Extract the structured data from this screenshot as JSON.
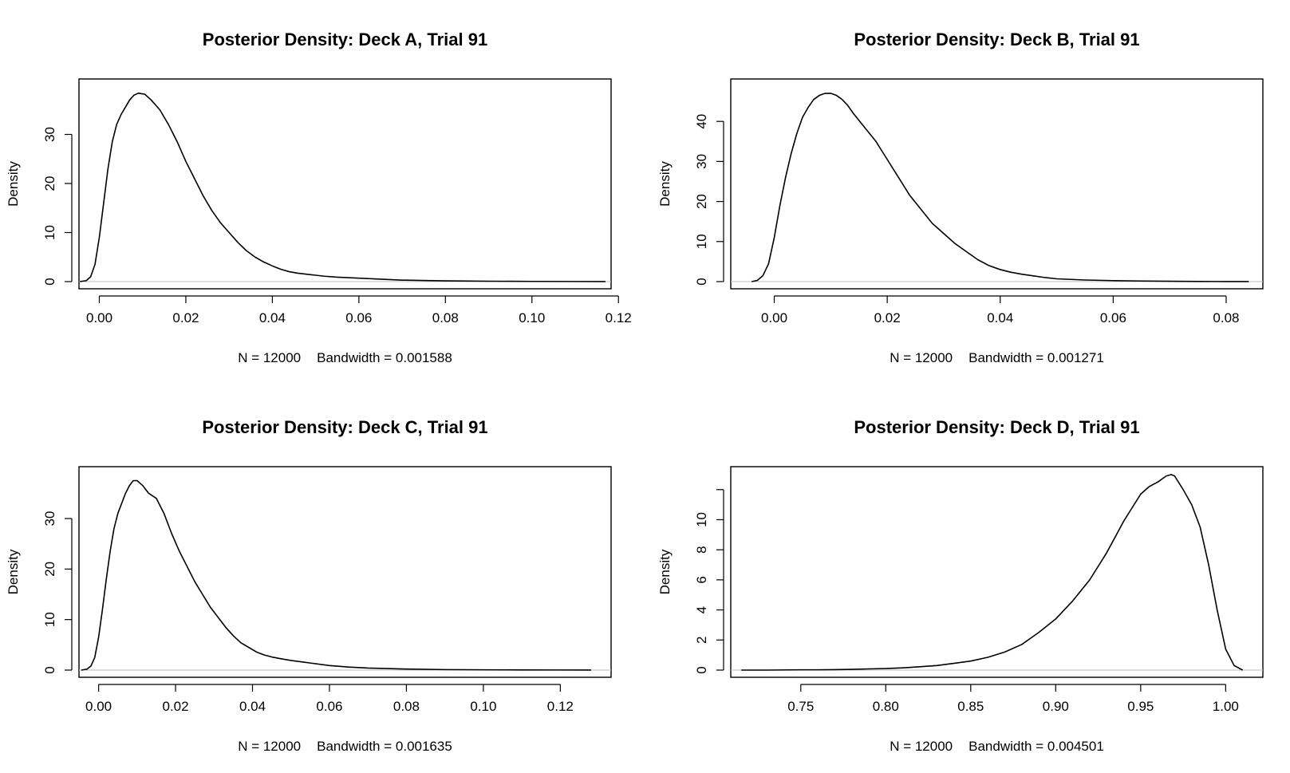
{
  "chart_data": [
    {
      "type": "line",
      "title": "Posterior Density: Deck A, Trial 91",
      "ylabel": "Density",
      "xlabel_parts": {
        "n": "N = 12000",
        "bandwidth": "Bandwidth = 0.001588"
      },
      "xlim": [
        -0.0047,
        0.1183
      ],
      "ylim": [
        0,
        40
      ],
      "xticks": [
        {
          "v": 0.0,
          "label": "0.00"
        },
        {
          "v": 0.02,
          "label": "0.02"
        },
        {
          "v": 0.04,
          "label": "0.04"
        },
        {
          "v": 0.06,
          "label": "0.06"
        },
        {
          "v": 0.08,
          "label": "0.08"
        },
        {
          "v": 0.1,
          "label": "0.10"
        },
        {
          "v": 0.12,
          "label": "0.12"
        }
      ],
      "yticks": [
        {
          "v": 0,
          "label": "0"
        },
        {
          "v": 10,
          "label": "10"
        },
        {
          "v": 20,
          "label": "20"
        },
        {
          "v": 30,
          "label": "30"
        }
      ],
      "series": [
        {
          "x": [
            -0.0045,
            -0.003,
            -0.002,
            -0.001,
            0.0,
            0.001,
            0.002,
            0.003,
            0.004,
            0.005,
            0.006,
            0.007,
            0.008,
            0.009,
            0.0105,
            0.012,
            0.014,
            0.016,
            0.018,
            0.02,
            0.022,
            0.024,
            0.026,
            0.028,
            0.03,
            0.032,
            0.034,
            0.036,
            0.038,
            0.04,
            0.042,
            0.044,
            0.046,
            0.048,
            0.05,
            0.052,
            0.055,
            0.06,
            0.065,
            0.07,
            0.08,
            0.09,
            0.1,
            0.11,
            0.117
          ],
          "y": [
            0.0,
            0.2,
            1.0,
            3.5,
            9.0,
            16.0,
            23.0,
            28.5,
            32.0,
            34.0,
            35.5,
            37.0,
            38.0,
            38.4,
            38.2,
            37.0,
            35.0,
            32.0,
            28.5,
            24.5,
            21.0,
            17.5,
            14.5,
            12.0,
            10.0,
            8.0,
            6.3,
            5.0,
            4.0,
            3.2,
            2.5,
            2.0,
            1.7,
            1.5,
            1.3,
            1.1,
            0.9,
            0.7,
            0.5,
            0.3,
            0.15,
            0.08,
            0.04,
            0.02,
            0.01
          ]
        }
      ]
    },
    {
      "type": "line",
      "title": "Posterior Density: Deck B, Trial 91",
      "ylabel": "Density",
      "xlabel_parts": {
        "n": "N = 12000",
        "bandwidth": "Bandwidth = 0.001271"
      },
      "xlim": [
        -0.0077,
        0.0865
      ],
      "ylim": [
        0,
        49
      ],
      "xticks": [
        {
          "v": 0.0,
          "label": "0.00"
        },
        {
          "v": 0.02,
          "label": "0.02"
        },
        {
          "v": 0.04,
          "label": "0.04"
        },
        {
          "v": 0.06,
          "label": "0.06"
        },
        {
          "v": 0.08,
          "label": "0.08"
        }
      ],
      "yticks": [
        {
          "v": 0,
          "label": "0"
        },
        {
          "v": 10,
          "label": "10"
        },
        {
          "v": 20,
          "label": "20"
        },
        {
          "v": 30,
          "label": "30"
        },
        {
          "v": 40,
          "label": "40"
        }
      ],
      "series": [
        {
          "x": [
            -0.004,
            -0.003,
            -0.002,
            -0.001,
            0.0,
            0.001,
            0.002,
            0.003,
            0.004,
            0.005,
            0.006,
            0.007,
            0.008,
            0.009,
            0.01,
            0.011,
            0.012,
            0.013,
            0.014,
            0.016,
            0.018,
            0.02,
            0.022,
            0.024,
            0.026,
            0.028,
            0.03,
            0.032,
            0.034,
            0.036,
            0.038,
            0.04,
            0.042,
            0.044,
            0.046,
            0.048,
            0.05,
            0.055,
            0.06,
            0.065,
            0.07,
            0.075,
            0.08,
            0.084
          ],
          "y": [
            0.0,
            0.3,
            1.5,
            4.5,
            11.0,
            19.0,
            26.0,
            32.0,
            37.0,
            41.0,
            43.5,
            45.5,
            46.5,
            47.0,
            47.0,
            46.5,
            45.5,
            44.0,
            42.0,
            38.5,
            35.0,
            30.5,
            26.0,
            21.5,
            18.0,
            14.5,
            12.0,
            9.5,
            7.5,
            5.5,
            4.0,
            3.0,
            2.3,
            1.8,
            1.4,
            1.0,
            0.7,
            0.4,
            0.25,
            0.15,
            0.08,
            0.04,
            0.02,
            0.01
          ]
        }
      ]
    },
    {
      "type": "line",
      "title": "Posterior Density: Deck C, Trial 91",
      "ylabel": "Density",
      "xlabel_parts": {
        "n": "N = 12000",
        "bandwidth": "Bandwidth = 0.001635"
      },
      "xlim": [
        -0.0051,
        0.1332
      ],
      "ylim": [
        0,
        39
      ],
      "xticks": [
        {
          "v": 0.0,
          "label": "0.00"
        },
        {
          "v": 0.02,
          "label": "0.02"
        },
        {
          "v": 0.04,
          "label": "0.04"
        },
        {
          "v": 0.06,
          "label": "0.06"
        },
        {
          "v": 0.08,
          "label": "0.08"
        },
        {
          "v": 0.1,
          "label": "0.10"
        },
        {
          "v": 0.12,
          "label": "0.12"
        }
      ],
      "yticks": [
        {
          "v": 0,
          "label": "0"
        },
        {
          "v": 10,
          "label": "10"
        },
        {
          "v": 20,
          "label": "20"
        },
        {
          "v": 30,
          "label": "30"
        }
      ],
      "series": [
        {
          "x": [
            -0.0045,
            -0.003,
            -0.002,
            -0.001,
            0.0,
            0.001,
            0.002,
            0.003,
            0.004,
            0.005,
            0.006,
            0.007,
            0.008,
            0.009,
            0.01,
            0.0115,
            0.013,
            0.015,
            0.017,
            0.019,
            0.021,
            0.023,
            0.025,
            0.027,
            0.029,
            0.031,
            0.033,
            0.035,
            0.037,
            0.039,
            0.041,
            0.043,
            0.045,
            0.047,
            0.05,
            0.055,
            0.06,
            0.065,
            0.07,
            0.08,
            0.09,
            0.1,
            0.11,
            0.12,
            0.128
          ],
          "y": [
            0.0,
            0.2,
            0.8,
            2.5,
            6.5,
            12.0,
            18.0,
            23.5,
            28.0,
            31.0,
            33.0,
            35.0,
            36.5,
            37.5,
            37.5,
            36.5,
            35.0,
            34.0,
            31.0,
            27.0,
            23.5,
            20.5,
            17.5,
            15.0,
            12.5,
            10.5,
            8.5,
            6.8,
            5.4,
            4.5,
            3.6,
            3.0,
            2.6,
            2.3,
            1.9,
            1.4,
            0.9,
            0.6,
            0.4,
            0.2,
            0.1,
            0.06,
            0.03,
            0.02,
            0.01
          ]
        }
      ]
    },
    {
      "type": "line",
      "title": "Posterior Density: Deck D, Trial 91",
      "ylabel": "Density",
      "xlabel_parts": {
        "n": "N = 12000",
        "bandwidth": "Bandwidth = 0.004501"
      },
      "xlim": [
        0.7088,
        1.0219
      ],
      "ylim": [
        0,
        13.1
      ],
      "xticks": [
        {
          "v": 0.75,
          "label": "0.75"
        },
        {
          "v": 0.8,
          "label": "0.80"
        },
        {
          "v": 0.85,
          "label": "0.85"
        },
        {
          "v": 0.9,
          "label": "0.90"
        },
        {
          "v": 0.95,
          "label": "0.95"
        },
        {
          "v": 1.0,
          "label": "1.00"
        }
      ],
      "yticks": [
        {
          "v": 0,
          "label": "0"
        },
        {
          "v": 2,
          "label": "2"
        },
        {
          "v": 4,
          "label": "4"
        },
        {
          "v": 6,
          "label": "6"
        },
        {
          "v": 8,
          "label": "8"
        },
        {
          "v": 10,
          "label": "10"
        },
        {
          "v": 12,
          "label": ""
        }
      ],
      "series": [
        {
          "x": [
            0.715,
            0.73,
            0.75,
            0.76,
            0.77,
            0.78,
            0.79,
            0.8,
            0.81,
            0.82,
            0.83,
            0.84,
            0.85,
            0.86,
            0.87,
            0.88,
            0.89,
            0.9,
            0.91,
            0.92,
            0.93,
            0.94,
            0.945,
            0.95,
            0.955,
            0.96,
            0.965,
            0.968,
            0.97,
            0.975,
            0.98,
            0.985,
            0.99,
            0.995,
            1.0,
            1.005,
            1.01
          ],
          "y": [
            0.0,
            0.0,
            0.02,
            0.02,
            0.03,
            0.05,
            0.08,
            0.1,
            0.15,
            0.22,
            0.3,
            0.45,
            0.6,
            0.85,
            1.2,
            1.7,
            2.5,
            3.4,
            4.6,
            6.0,
            7.8,
            9.9,
            10.8,
            11.7,
            12.2,
            12.5,
            12.9,
            13.0,
            12.9,
            12.0,
            11.0,
            9.5,
            7.0,
            4.0,
            1.4,
            0.3,
            0.0
          ]
        }
      ]
    }
  ]
}
